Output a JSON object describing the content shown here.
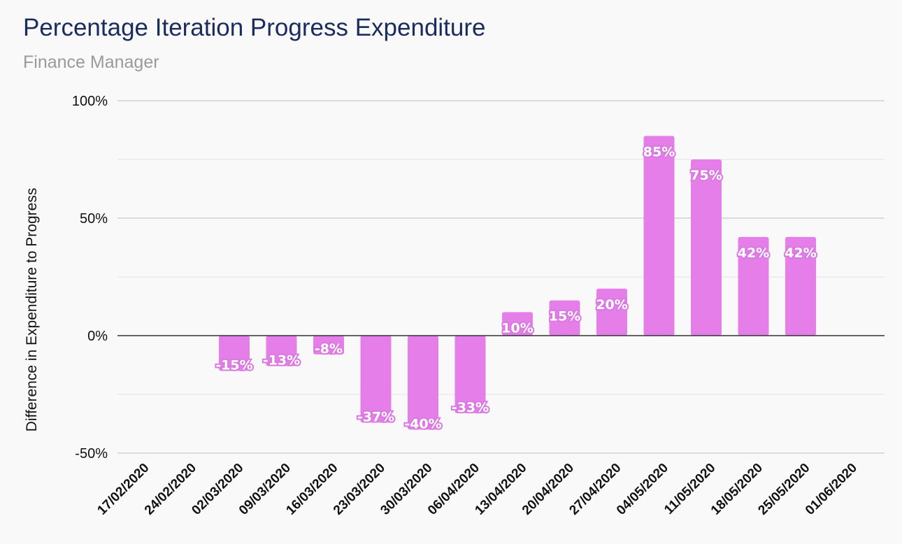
{
  "header": {
    "title": "Percentage Iteration Progress Expenditure",
    "subtitle": "Finance Manager"
  },
  "chart_data": {
    "type": "bar",
    "title": "Percentage Iteration Progress Expenditure",
    "subtitle": "Finance Manager",
    "xlabel": "",
    "ylabel": "Difference in Expenditure to Progress",
    "ylim": [
      -50,
      100
    ],
    "y_ticks": [
      {
        "value": 100,
        "label": "100%"
      },
      {
        "value": 50,
        "label": "50%"
      },
      {
        "value": 0,
        "label": "0%"
      },
      {
        "value": -50,
        "label": "-50%"
      }
    ],
    "grid": true,
    "legend": "none",
    "bar_color": "#e57ee8",
    "categories": [
      "17/02/2020",
      "24/02/2020",
      "02/03/2020",
      "09/03/2020",
      "16/03/2020",
      "23/03/2020",
      "30/03/2020",
      "06/04/2020",
      "13/04/2020",
      "20/04/2020",
      "27/04/2020",
      "04/05/2020",
      "11/05/2020",
      "18/05/2020",
      "25/05/2020",
      "01/06/2020"
    ],
    "values": [
      null,
      null,
      -15,
      -13,
      -8,
      -37,
      -40,
      -33,
      10,
      15,
      20,
      85,
      75,
      42,
      42,
      null
    ],
    "data_labels": [
      "",
      "",
      "-15%",
      "-13%",
      "-8%",
      "-37%",
      "-40%",
      "-33%",
      "10%",
      "15%",
      "20%",
      "85%",
      "75%",
      "42%",
      "42%",
      ""
    ]
  }
}
